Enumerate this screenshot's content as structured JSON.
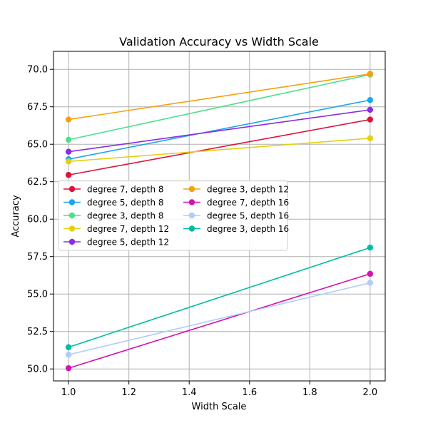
{
  "chart_data": {
    "type": "line",
    "title": "Validation Accuracy vs Width Scale",
    "xlabel": "Width Scale",
    "ylabel": "Accuracy",
    "xlim": [
      0.95,
      2.05
    ],
    "ylim": [
      49.2,
      71.2
    ],
    "x_ticks": [
      "1.0",
      "1.2",
      "1.4",
      "1.6",
      "1.8",
      "2.0"
    ],
    "y_ticks": [
      "50.0",
      "52.5",
      "55.0",
      "57.5",
      "60.0",
      "62.5",
      "65.0",
      "67.5",
      "70.0"
    ],
    "grid": true,
    "legend_position": "center-left",
    "x": [
      1.0,
      2.0
    ],
    "series": [
      {
        "name": "degree 7, depth 8",
        "color": "#dc143c",
        "values": [
          62.95,
          66.65
        ]
      },
      {
        "name": "degree 5, depth 8",
        "color": "#1aa7ec",
        "values": [
          64.0,
          67.95
        ]
      },
      {
        "name": "degree 3, depth 8",
        "color": "#4de08a",
        "values": [
          65.3,
          69.65
        ]
      },
      {
        "name": "degree 7, depth 12",
        "color": "#e6cf0f",
        "values": [
          63.85,
          65.4
        ]
      },
      {
        "name": "degree 5, depth 12",
        "color": "#8b2be2",
        "values": [
          64.5,
          67.3
        ]
      },
      {
        "name": "degree 3, depth 12",
        "color": "#f5a00f",
        "values": [
          66.65,
          69.7
        ]
      },
      {
        "name": "degree 7, depth 16",
        "color": "#d311b5",
        "values": [
          50.05,
          56.35
        ]
      },
      {
        "name": "degree 5, depth 16",
        "color": "#aecdfa",
        "values": [
          50.95,
          55.75
        ]
      },
      {
        "name": "degree 3, depth 16",
        "color": "#00bfa0",
        "values": [
          51.45,
          58.1
        ]
      }
    ]
  }
}
